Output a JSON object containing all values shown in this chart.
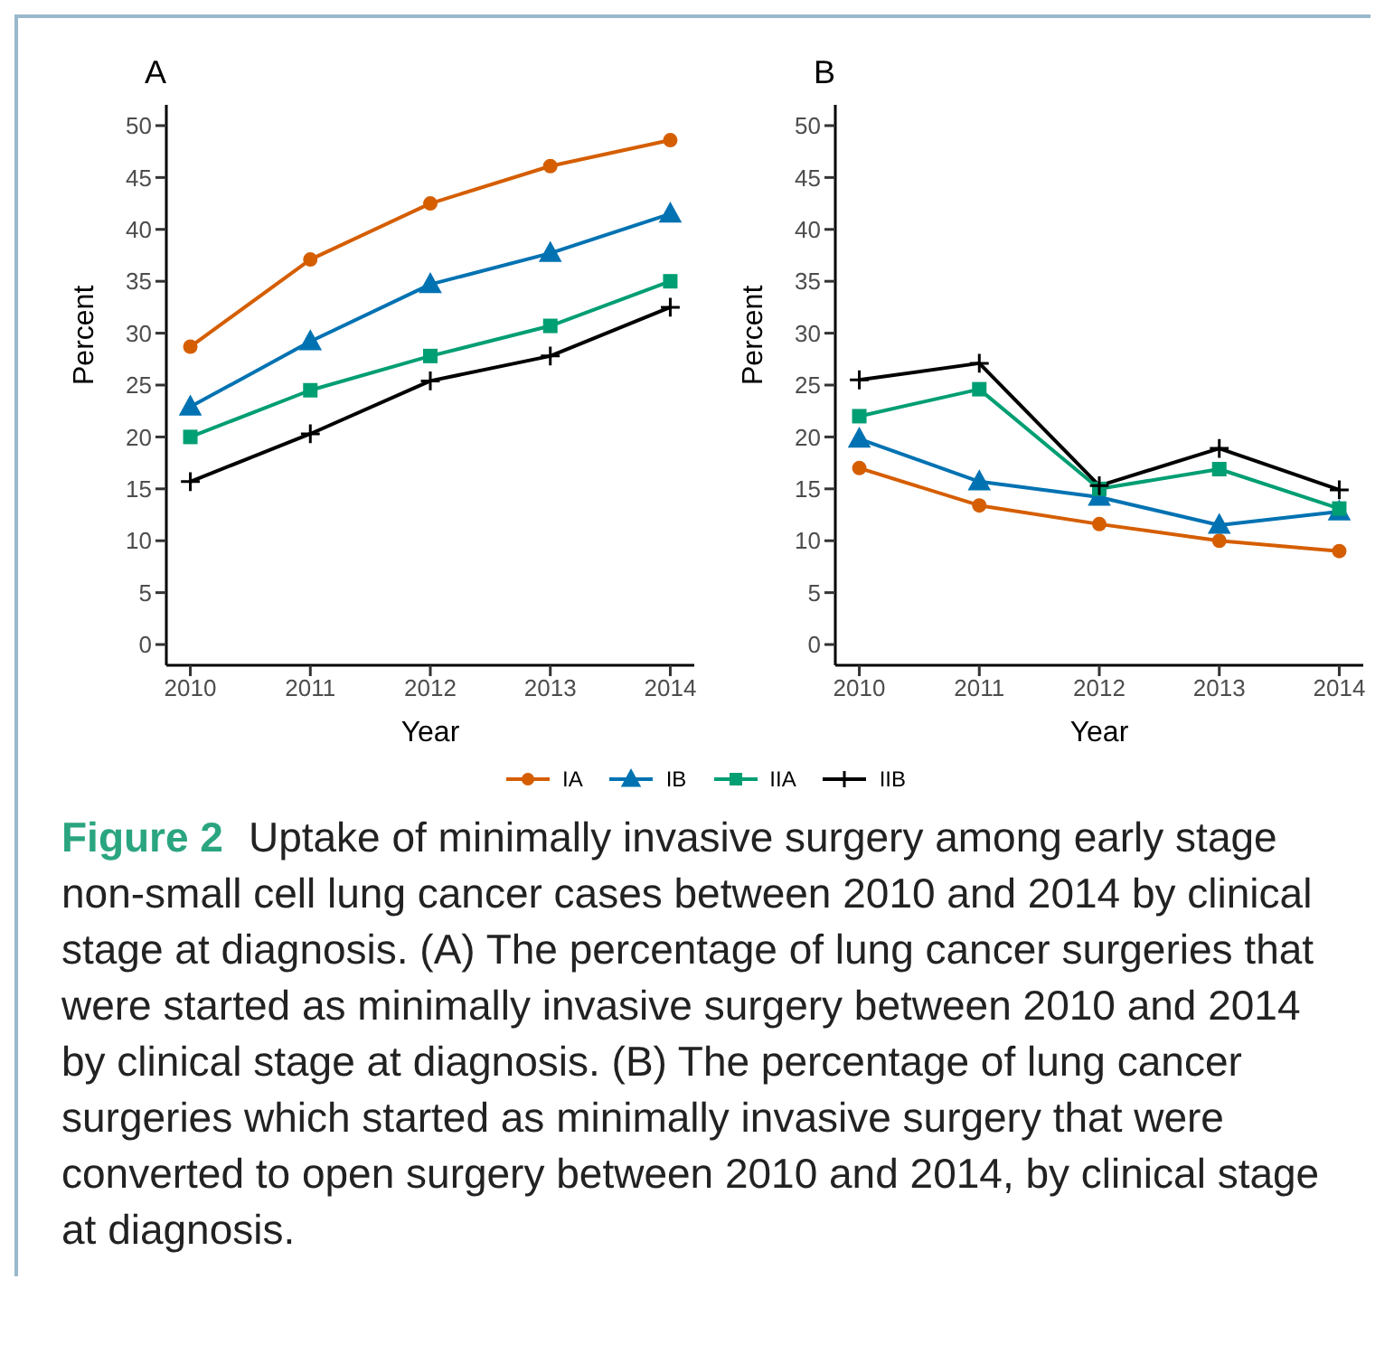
{
  "chart_data": [
    {
      "type": "line",
      "title": "A",
      "xlabel": "Year",
      "ylabel": "Percent",
      "x": [
        2010,
        2011,
        2012,
        2013,
        2014
      ],
      "xlim": [
        2009.8,
        2014.2
      ],
      "xticks": [
        2010,
        2011,
        2012,
        2013,
        2014
      ],
      "ylim": [
        -2,
        52
      ],
      "yticks": [
        0,
        5,
        10,
        15,
        20,
        25,
        30,
        35,
        40,
        45,
        50
      ],
      "grid": false,
      "legend": "bottom",
      "series": [
        {
          "name": "IA",
          "color": "#d55e00",
          "marker": "circle",
          "values": [
            28.7,
            37.1,
            42.5,
            46.1,
            48.6
          ]
        },
        {
          "name": "IB",
          "color": "#0072b2",
          "marker": "triangle",
          "values": [
            22.9,
            29.2,
            34.7,
            37.7,
            41.5
          ]
        },
        {
          "name": "IIA",
          "color": "#009e73",
          "marker": "square",
          "values": [
            20.0,
            24.5,
            27.8,
            30.7,
            35.0
          ]
        },
        {
          "name": "IIB",
          "color": "#000000",
          "marker": "cross",
          "values": [
            15.7,
            20.3,
            25.4,
            27.8,
            32.5
          ]
        }
      ],
      "annotations": [
        "Figure 2",
        "Uptake of minimally invasive surgery among early stage non-small cell lung cancer cases between 2010 and 2014 by clinical stage at diagnosis. (A) The percentage of lung cancer surgeries that were started as minimally invasive surgery between 2010 and 2014 by clinical stage at diagnosis. (B) The percentage of lung cancer surgeries which started as minimally invasive surgery that were converted to open surgery between 2010 and 2014, by clinical stage at diagnosis."
      ]
    },
    {
      "type": "line",
      "title": "B",
      "xlabel": "Year",
      "ylabel": "Percent",
      "x": [
        2010,
        2011,
        2012,
        2013,
        2014
      ],
      "xlim": [
        2009.8,
        2014.2
      ],
      "xticks": [
        2010,
        2011,
        2012,
        2013,
        2014
      ],
      "ylim": [
        -2,
        52
      ],
      "yticks": [
        0,
        5,
        10,
        15,
        20,
        25,
        30,
        35,
        40,
        45,
        50
      ],
      "grid": false,
      "legend": "bottom",
      "series": [
        {
          "name": "IA",
          "color": "#d55e00",
          "marker": "circle",
          "values": [
            17.0,
            13.4,
            11.6,
            10.0,
            9.0
          ]
        },
        {
          "name": "IB",
          "color": "#0072b2",
          "marker": "triangle",
          "values": [
            19.8,
            15.7,
            14.2,
            11.5,
            12.8
          ]
        },
        {
          "name": "IIA",
          "color": "#009e73",
          "marker": "square",
          "values": [
            22.0,
            24.6,
            15.0,
            16.9,
            13.1
          ]
        },
        {
          "name": "IIB",
          "color": "#000000",
          "marker": "cross",
          "values": [
            25.5,
            27.1,
            15.3,
            18.9,
            14.9
          ]
        }
      ]
    }
  ]
}
